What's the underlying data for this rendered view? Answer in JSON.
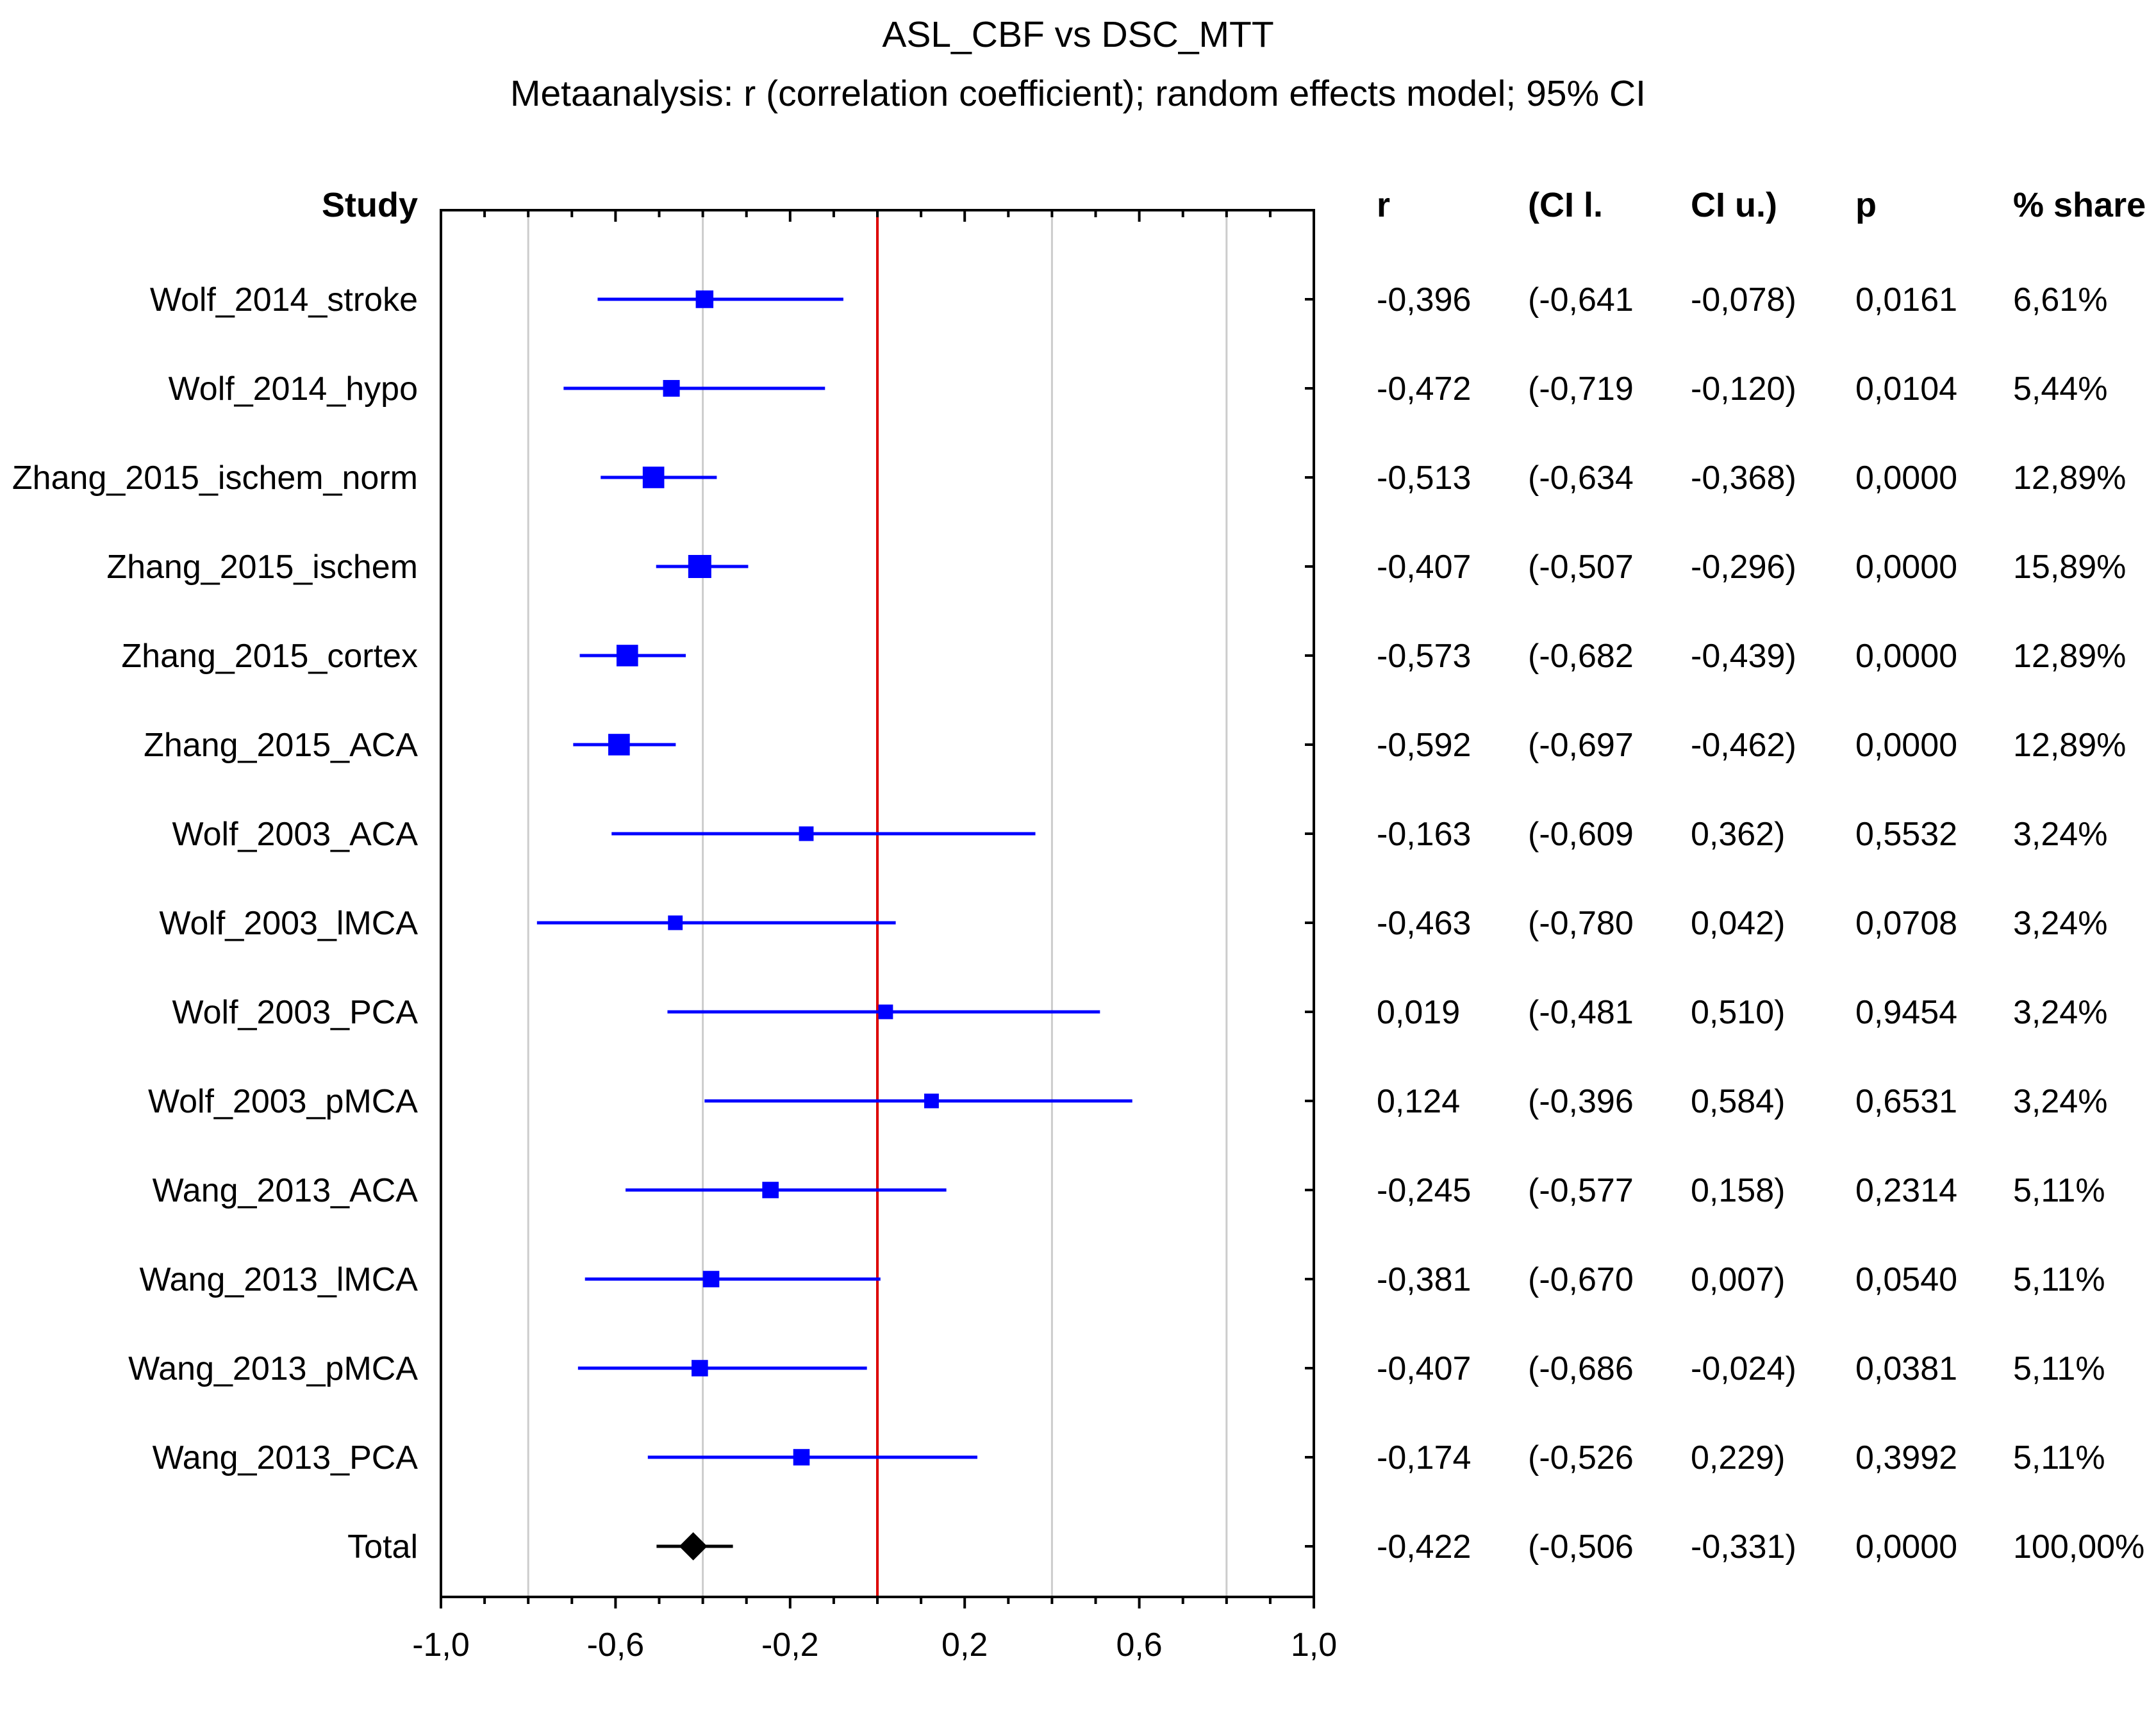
{
  "chart_data": {
    "type": "forest",
    "title": "ASL_CBF vs DSC_MTT",
    "subtitle": "Metaanalysis: r (correlation coefficient); random effects model; 95% CI",
    "xlim": [
      -1.0,
      1.0
    ],
    "x_ticks": [
      "-1,0",
      "-0,6",
      "-0,2",
      "0,2",
      "0,6",
      "1,0"
    ],
    "x_tick_values": [
      -1.0,
      -0.6,
      -0.2,
      0.2,
      0.6,
      1.0
    ],
    "gridlines": [
      -0.8,
      -0.4,
      0.0,
      0.4,
      0.8
    ],
    "reference_line": 0.0,
    "columns": {
      "study": "Study",
      "r": "r",
      "ci_l": "(CI l.",
      "ci_u": "CI u.)",
      "p": "p",
      "share": "% share"
    },
    "studies": [
      {
        "name": "Wolf_2014_stroke",
        "r": -0.396,
        "lo": -0.641,
        "hi": -0.078,
        "r_text": "-0,396",
        "lo_text": "(-0,641",
        "hi_text": "-0,078)",
        "p": "0,0161",
        "share_text": "6,61%",
        "share": 6.61
      },
      {
        "name": "Wolf_2014_hypo",
        "r": -0.472,
        "lo": -0.719,
        "hi": -0.12,
        "r_text": "-0,472",
        "lo_text": "(-0,719",
        "hi_text": "-0,120)",
        "p": "0,0104",
        "share_text": "5,44%",
        "share": 5.44
      },
      {
        "name": "Zhang_2015_ischem_norm",
        "r": -0.513,
        "lo": -0.634,
        "hi": -0.368,
        "r_text": "-0,513",
        "lo_text": "(-0,634",
        "hi_text": "-0,368)",
        "p": "0,0000",
        "share_text": "12,89%",
        "share": 12.89
      },
      {
        "name": "Zhang_2015_ischem",
        "r": -0.407,
        "lo": -0.507,
        "hi": -0.296,
        "r_text": "-0,407",
        "lo_text": "(-0,507",
        "hi_text": "-0,296)",
        "p": "0,0000",
        "share_text": "15,89%",
        "share": 15.89
      },
      {
        "name": "Zhang_2015_cortex",
        "r": -0.573,
        "lo": -0.682,
        "hi": -0.439,
        "r_text": "-0,573",
        "lo_text": "(-0,682",
        "hi_text": "-0,439)",
        "p": "0,0000",
        "share_text": "12,89%",
        "share": 12.89
      },
      {
        "name": "Zhang_2015_ACA",
        "r": -0.592,
        "lo": -0.697,
        "hi": -0.462,
        "r_text": "-0,592",
        "lo_text": "(-0,697",
        "hi_text": "-0,462)",
        "p": "0,0000",
        "share_text": "12,89%",
        "share": 12.89
      },
      {
        "name": "Wolf_2003_ACA",
        "r": -0.163,
        "lo": -0.609,
        "hi": 0.362,
        "r_text": "-0,163",
        "lo_text": "(-0,609",
        "hi_text": "0,362)",
        "p": "0,5532",
        "share_text": "3,24%",
        "share": 3.24
      },
      {
        "name": "Wolf_2003_lMCA",
        "r": -0.463,
        "lo": -0.78,
        "hi": 0.042,
        "r_text": "-0,463",
        "lo_text": "(-0,780",
        "hi_text": "0,042)",
        "p": "0,0708",
        "share_text": "3,24%",
        "share": 3.24
      },
      {
        "name": "Wolf_2003_PCA",
        "r": 0.019,
        "lo": -0.481,
        "hi": 0.51,
        "r_text": "0,019",
        "lo_text": "(-0,481",
        "hi_text": "0,510)",
        "p": "0,9454",
        "share_text": "3,24%",
        "share": 3.24
      },
      {
        "name": "Wolf_2003_pMCA",
        "r": 0.124,
        "lo": -0.396,
        "hi": 0.584,
        "r_text": "0,124",
        "lo_text": "(-0,396",
        "hi_text": "0,584)",
        "p": "0,6531",
        "share_text": "3,24%",
        "share": 3.24
      },
      {
        "name": "Wang_2013_ACA",
        "r": -0.245,
        "lo": -0.577,
        "hi": 0.158,
        "r_text": "-0,245",
        "lo_text": "(-0,577",
        "hi_text": "0,158)",
        "p": "0,2314",
        "share_text": "5,11%",
        "share": 5.11
      },
      {
        "name": "Wang_2013_lMCA",
        "r": -0.381,
        "lo": -0.67,
        "hi": 0.007,
        "r_text": "-0,381",
        "lo_text": "(-0,670",
        "hi_text": "0,007)",
        "p": "0,0540",
        "share_text": "5,11%",
        "share": 5.11
      },
      {
        "name": "Wang_2013_pMCA",
        "r": -0.407,
        "lo": -0.686,
        "hi": -0.024,
        "r_text": "-0,407",
        "lo_text": "(-0,686",
        "hi_text": "-0,024)",
        "p": "0,0381",
        "share_text": "5,11%",
        "share": 5.11
      },
      {
        "name": "Wang_2013_PCA",
        "r": -0.174,
        "lo": -0.526,
        "hi": 0.229,
        "r_text": "-0,174",
        "lo_text": "(-0,526",
        "hi_text": "0,229)",
        "p": "0,3992",
        "share_text": "5,11%",
        "share": 5.11
      }
    ],
    "total": {
      "name": "Total",
      "r": -0.422,
      "lo": -0.506,
      "hi": -0.331,
      "r_text": "-0,422",
      "lo_text": "(-0,506",
      "hi_text": "-0,331)",
      "p": "0,0000",
      "share_text": "100,00%"
    },
    "colors": {
      "study": "#0000ff",
      "total": "#000000",
      "reference": "#dd0000",
      "grid": "#cccccc"
    }
  }
}
